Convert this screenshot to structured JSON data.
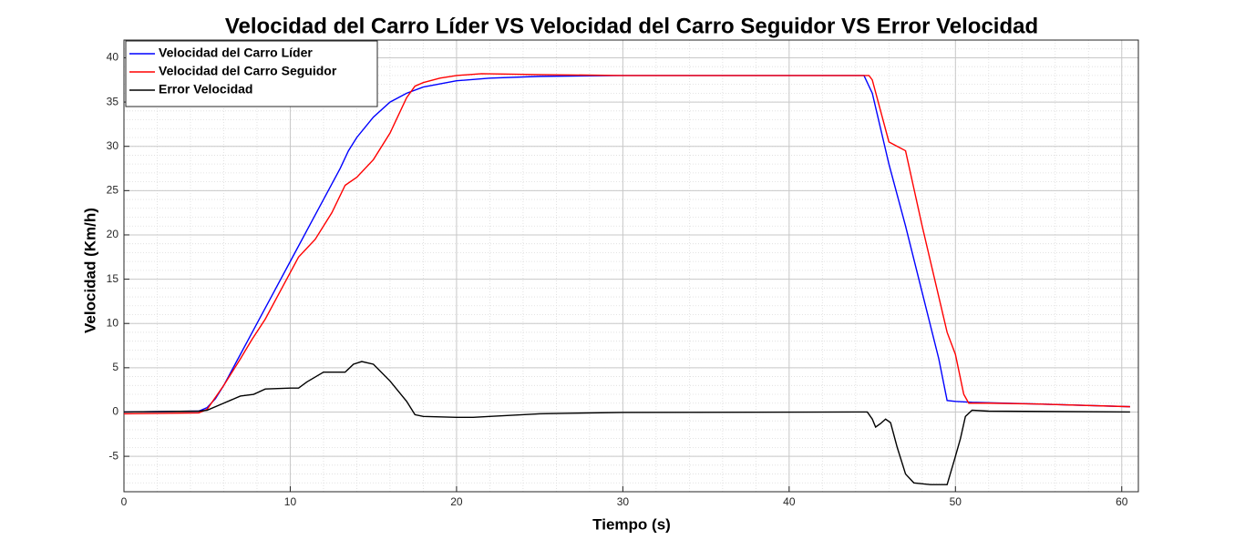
{
  "chart_data": {
    "type": "line",
    "title": "Velocidad del Carro Líder VS Velocidad del Carro Seguidor VS Error Velocidad",
    "x_label": "Tiempo (s)",
    "y_label": "Velocidad (Km/h)",
    "xlim": [
      0,
      61
    ],
    "ylim": [
      -9,
      42
    ],
    "xticks": [
      0,
      10,
      20,
      30,
      40,
      50,
      60
    ],
    "yticks": [
      -5,
      0,
      5,
      10,
      15,
      20,
      25,
      30,
      35,
      40
    ],
    "grid": true,
    "minor_grid": true,
    "legend": "top-left",
    "series": [
      {
        "name": "Velocidad del Carro Líder",
        "color": "#0000ff",
        "x": [
          0,
          4.5,
          5,
          5.5,
          6,
          7,
          8,
          9,
          10,
          11,
          12,
          13,
          13.5,
          14,
          15,
          16,
          17,
          18,
          20,
          22,
          25,
          30,
          40,
          44.5,
          45,
          45.5,
          46,
          47,
          48,
          49,
          49.5,
          50,
          51,
          55,
          60.5
        ],
        "values": [
          0,
          0.1,
          0.5,
          1.5,
          3,
          6.5,
          10,
          13.5,
          17,
          20.5,
          24,
          27.5,
          29.5,
          31,
          33.3,
          35,
          36,
          36.7,
          37.4,
          37.7,
          37.9,
          38,
          38,
          38,
          36,
          32,
          28,
          21,
          13.5,
          6,
          1.3,
          1.2,
          1.1,
          0.9,
          0.6
        ]
      },
      {
        "name": "Velocidad del Carro Seguidor",
        "color": "#ff0000",
        "x": [
          0,
          4.5,
          5,
          6,
          7,
          7.7,
          8.5,
          9.5,
          10.5,
          11.5,
          12.5,
          13.3,
          14,
          15,
          16,
          17,
          17.5,
          18,
          19,
          20,
          21.5,
          25,
          30,
          44,
          44.8,
          45,
          45.5,
          46,
          46.5,
          47,
          48,
          49,
          49.5,
          50,
          50.5,
          50.8,
          52,
          55,
          60.5
        ],
        "values": [
          -0.2,
          -0.1,
          0.3,
          3,
          6,
          8.2,
          10.5,
          14,
          17.5,
          19.5,
          22.5,
          25.6,
          26.5,
          28.5,
          31.5,
          35.5,
          36.8,
          37.2,
          37.7,
          38,
          38.2,
          38.1,
          38,
          38,
          38,
          37.5,
          34,
          30.5,
          30,
          29.5,
          21,
          13,
          9,
          6.5,
          2,
          1,
          1,
          0.9,
          0.6
        ]
      },
      {
        "name": "Error Velocidad",
        "color": "#000000",
        "x": [
          0,
          4.5,
          5,
          6,
          7,
          7.8,
          8.5,
          10,
          10.5,
          11,
          12,
          13.3,
          13.8,
          14.3,
          15,
          16,
          17,
          17.5,
          18,
          20,
          21,
          22,
          25,
          30,
          44,
          44.7,
          45,
          45.2,
          45.5,
          45.8,
          46.1,
          46.5,
          47,
          47.5,
          48.5,
          49.5,
          50,
          50.3,
          50.6,
          51,
          52,
          60.5
        ],
        "values": [
          0,
          0.1,
          0.2,
          1,
          1.8,
          2,
          2.6,
          2.7,
          2.7,
          3.4,
          4.5,
          4.5,
          5.4,
          5.7,
          5.4,
          3.5,
          1.2,
          -0.3,
          -0.5,
          -0.6,
          -0.6,
          -0.5,
          -0.2,
          -0.05,
          0,
          0,
          -0.8,
          -1.7,
          -1.3,
          -0.8,
          -1.2,
          -4,
          -7,
          -8,
          -8.2,
          -8.2,
          -5,
          -3,
          -0.5,
          0.2,
          0.1,
          0
        ]
      }
    ]
  }
}
